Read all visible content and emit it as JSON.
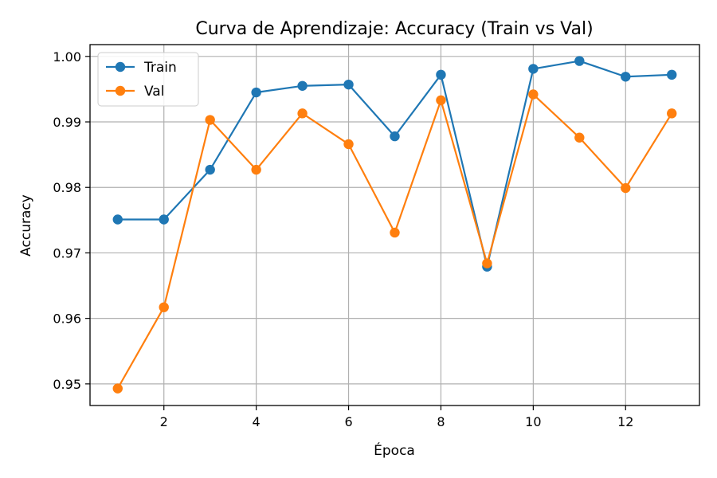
{
  "chart_data": {
    "type": "line",
    "title": "Curva de Aprendizaje: Accuracy (Train vs Val)",
    "xlabel": "Época",
    "ylabel": "Accuracy",
    "xlim": [
      0.4,
      13.6
    ],
    "ylim": [
      0.9467,
      1.0018
    ],
    "xticks": [
      2,
      4,
      6,
      8,
      10,
      12
    ],
    "xtick_labels": [
      "2",
      "4",
      "6",
      "8",
      "10",
      "12"
    ],
    "yticks": [
      0.95,
      0.96,
      0.97,
      0.98,
      0.99,
      1.0
    ],
    "ytick_labels": [
      "0.95",
      "0.96",
      "0.97",
      "0.98",
      "0.99",
      "1.00"
    ],
    "grid": true,
    "legend": "top-left",
    "x": [
      1,
      2,
      3,
      4,
      5,
      6,
      7,
      8,
      9,
      10,
      11,
      12,
      13
    ],
    "series": [
      {
        "name": "Train",
        "color": "#1f77b4",
        "marker": "circle",
        "values": [
          0.9751,
          0.9751,
          0.9827,
          0.9945,
          0.9955,
          0.9957,
          0.9878,
          0.9972,
          0.9679,
          0.9981,
          0.9993,
          0.9969,
          0.9972
        ]
      },
      {
        "name": "Val",
        "color": "#ff7f0e",
        "marker": "circle",
        "values": [
          0.9493,
          0.9617,
          0.9903,
          0.9827,
          0.9913,
          0.9866,
          0.9731,
          0.9933,
          0.9684,
          0.9942,
          0.9876,
          0.9799,
          0.9913
        ]
      }
    ]
  }
}
